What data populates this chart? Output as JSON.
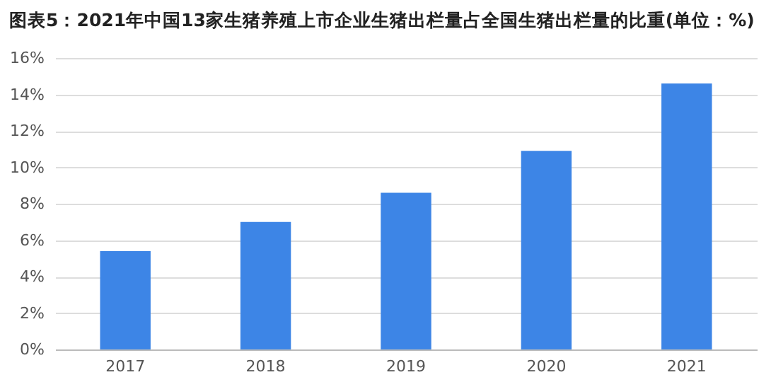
{
  "chart_data": {
    "type": "bar",
    "title": "图表5：2021年中国13家生猪养殖上市企业生猪出栏量占全国生猪出栏量的比重(单位：%)",
    "categories": [
      "2017",
      "2018",
      "2019",
      "2020",
      "2021"
    ],
    "values": [
      5.4,
      7.0,
      8.6,
      10.9,
      14.6
    ],
    "color": "#3d85e6",
    "ylim": [
      0,
      16
    ],
    "yticks": [
      {
        "value": 0,
        "label": "0%"
      },
      {
        "value": 2,
        "label": "2%"
      },
      {
        "value": 4,
        "label": "4%"
      },
      {
        "value": 6,
        "label": "6%"
      },
      {
        "value": 8,
        "label": "8%"
      },
      {
        "value": 10,
        "label": "10%"
      },
      {
        "value": 12,
        "label": "12%"
      },
      {
        "value": 14,
        "label": "14%"
      },
      {
        "value": 16,
        "label": "16%"
      }
    ],
    "grid": "y"
  }
}
